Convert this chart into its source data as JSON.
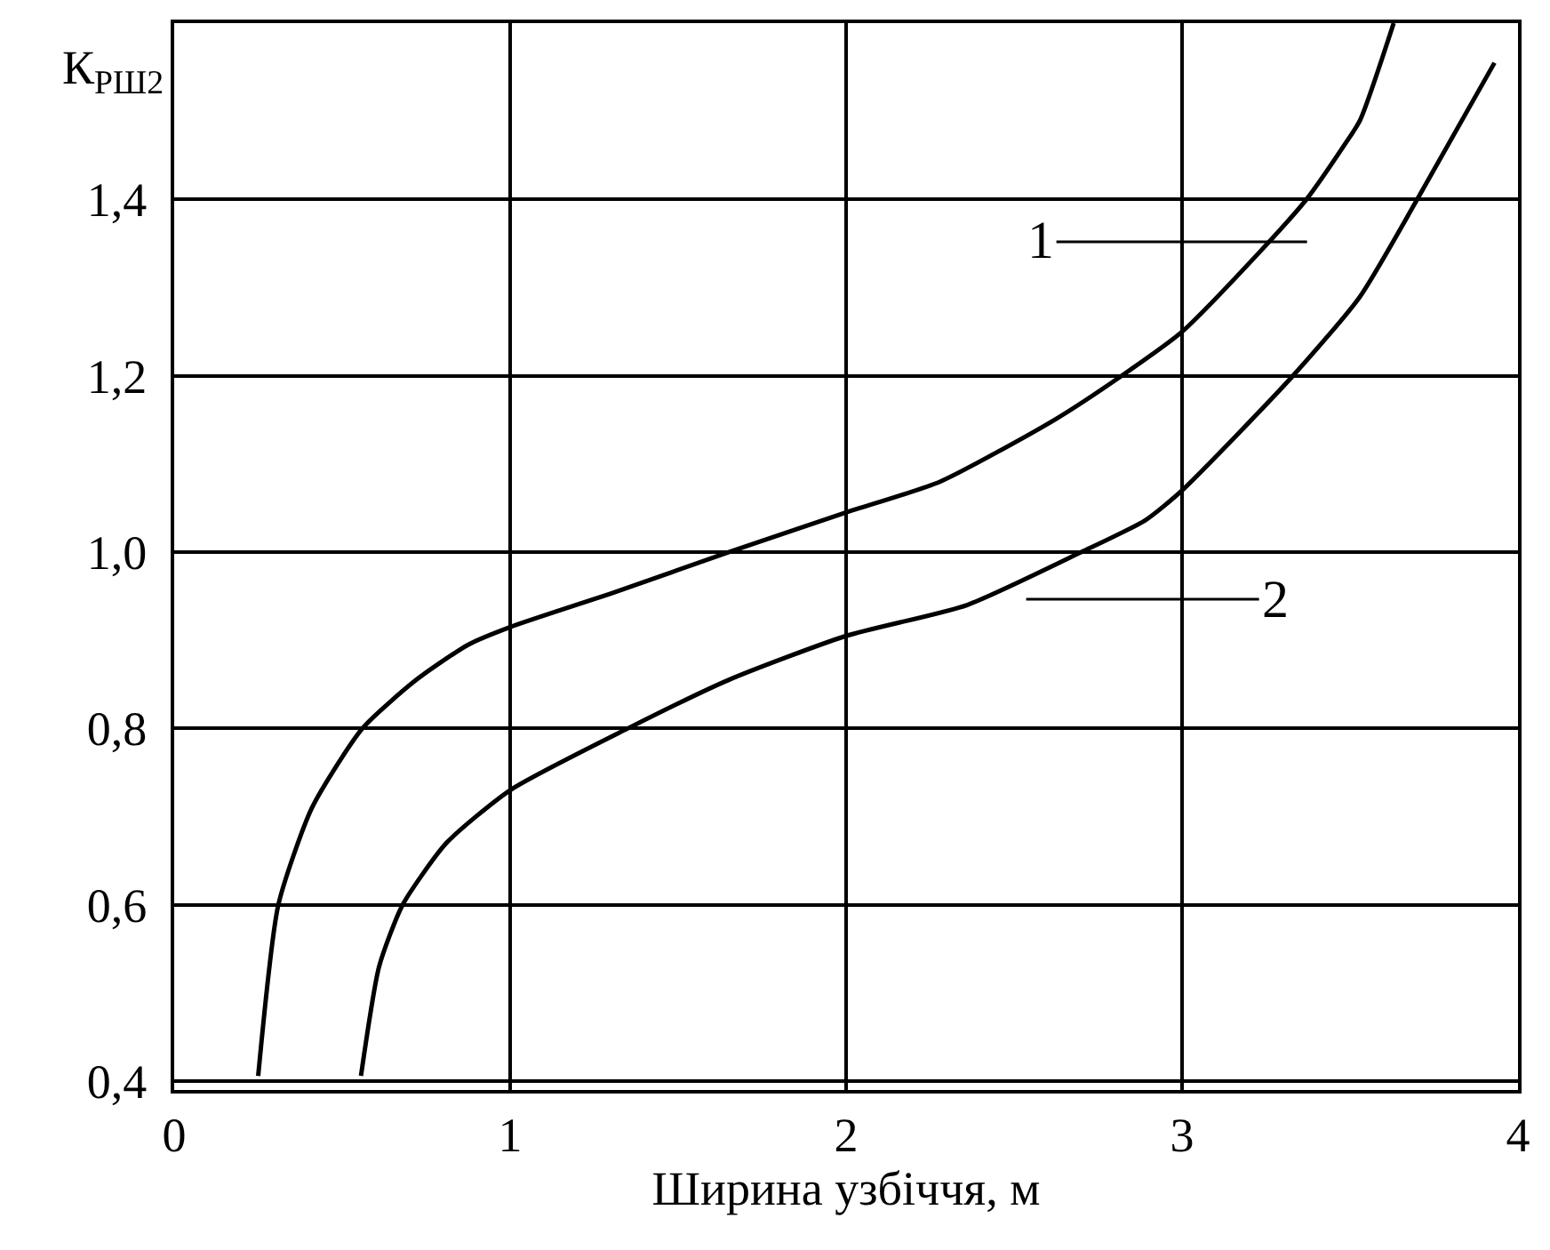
{
  "chart_data": {
    "type": "line",
    "xlabel": "Ширина узбіччя, м",
    "ylabel": "К$_{РШ2}$",
    "xlim": [
      0,
      4
    ],
    "xticks": [
      0,
      1,
      2,
      3,
      4
    ],
    "ylim": [
      0.39,
      1.6
    ],
    "yticks": [
      {
        "value": 0.4,
        "label": "0,4"
      },
      {
        "value": 0.6,
        "label": "0,6"
      },
      {
        "value": 0.8,
        "label": "0,8"
      },
      {
        "value": 1.0,
        "label": "1,0"
      },
      {
        "value": 1.2,
        "label": "1,2"
      },
      {
        "value": 1.4,
        "label": "1,4"
      }
    ],
    "grid": true,
    "marker": "none",
    "line_style": "solid",
    "series": [
      {
        "color": "#000000",
        "x": [
          0.25,
          0.31,
          0.41,
          0.56,
          0.72,
          0.875,
          1.0,
          1.315,
          1.65,
          2.0,
          2.28,
          2.62,
          2.82,
          3.0,
          3.23,
          3.37,
          3.48,
          3.53,
          3.63
        ],
        "values": [
          0.406,
          0.6,
          0.71,
          0.8,
          0.855,
          0.895,
          0.915,
          0.955,
          1.0,
          1.045,
          1.08,
          1.15,
          1.2,
          1.25,
          1.34,
          1.4,
          1.46,
          1.49,
          1.6
        ]
      },
      {
        "color": "#000000",
        "x": [
          0.556,
          0.61,
          0.68,
          0.81,
          1.0,
          1.35,
          1.65,
          2.0,
          2.36,
          2.7,
          2.89,
          3.0,
          3.33,
          3.53,
          3.7,
          3.93
        ],
        "values": [
          0.406,
          0.53,
          0.6,
          0.67,
          0.73,
          0.8,
          0.855,
          0.905,
          0.94,
          1.0,
          1.036,
          1.07,
          1.2,
          1.29,
          1.4,
          1.555
        ]
      }
    ],
    "annotations": [
      "1",
      "2"
    ]
  }
}
